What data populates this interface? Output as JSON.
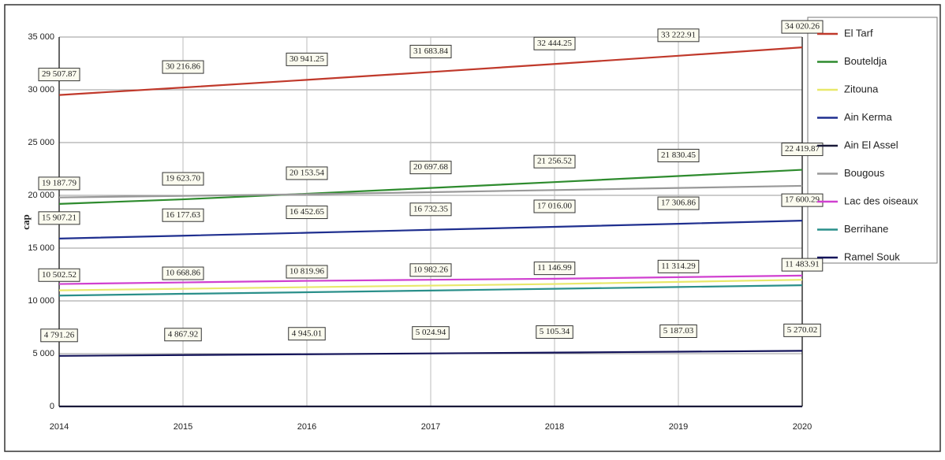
{
  "chart_data": {
    "type": "line",
    "y_label": "cap",
    "x": [
      2014,
      2015,
      2016,
      2017,
      2018,
      2019,
      2020
    ],
    "xlim": [
      2014,
      2020
    ],
    "xticks": [
      2014,
      2015,
      2016,
      2017,
      2018,
      2019,
      2020
    ],
    "ylim": [
      0,
      35000
    ],
    "yticks": [
      {
        "value": 0,
        "label": "0"
      },
      {
        "value": 5000,
        "label": "5 000"
      },
      {
        "value": 10000,
        "label": "10 000"
      },
      {
        "value": 15000,
        "label": "15 000"
      },
      {
        "value": 20000,
        "label": "20 000"
      },
      {
        "value": 25000,
        "label": "25 000"
      },
      {
        "value": 30000,
        "label": "30 000"
      },
      {
        "value": 35000,
        "label": "35 000"
      }
    ],
    "grid": true,
    "legend": "right",
    "series": [
      {
        "name": "El Tarf",
        "color": "#c0392b",
        "values": [
          29507.87,
          30216.86,
          30941.25,
          31683.84,
          32444.25,
          33222.91,
          34020.26
        ],
        "value_labels": [
          "29 507.87",
          "30 216.86",
          "30 941.25",
          "31 683.84",
          "32 444.25",
          "33 222.91",
          "34 020.26"
        ]
      },
      {
        "name": "Bouteldja",
        "color": "#2e8b2e",
        "values": [
          19187.79,
          19623.7,
          20153.54,
          20697.68,
          21256.52,
          21830.45,
          22419.87
        ],
        "value_labels": [
          "19 187.79",
          "19 623.70",
          "20 153.54",
          "20 697.68",
          "21 256.52",
          "21 830.45",
          "22 419.87"
        ]
      },
      {
        "name": "Zitouna",
        "color": "#e8e86a",
        "values": [
          11000,
          11150,
          11300,
          11450,
          11600,
          11800,
          12000
        ]
      },
      {
        "name": "Ain Kerma",
        "color": "#1f2f8f",
        "values": [
          15907.21,
          16177.63,
          16452.65,
          16732.35,
          17016.0,
          17306.86,
          17600.29
        ],
        "value_labels": [
          "15 907.21",
          "16 177.63",
          "16 452.65",
          "16 732.35",
          "17 016.00",
          "17 306.86",
          "17 600.29"
        ]
      },
      {
        "name": "Ain El Assel",
        "color": "#1a1a3a",
        "values": [
          0,
          0,
          0,
          0,
          0,
          0,
          0
        ]
      },
      {
        "name": "Bougous",
        "color": "#999999",
        "values": [
          19800,
          19950,
          20100,
          20300,
          20500,
          20700,
          20900
        ]
      },
      {
        "name": "Lac des oiseaux",
        "color": "#d040d0",
        "values": [
          11600,
          11750,
          11900,
          12000,
          12100,
          12250,
          12400
        ]
      },
      {
        "name": "Berrihane",
        "color": "#2a8f8a",
        "values": [
          10502.52,
          10668.86,
          10819.96,
          10982.26,
          11146.99,
          11314.29,
          11483.91
        ],
        "value_labels": [
          "10 502.52",
          "10 668.86",
          "10 819.96",
          "10 982.26",
          "11 146.99",
          "11 314.29",
          "11 483.91"
        ]
      },
      {
        "name": "Ramel Souk",
        "color": "#14145a",
        "values": [
          4791.26,
          4867.92,
          4945.01,
          5024.94,
          5105.34,
          5187.03,
          5270.02
        ],
        "value_labels": [
          "4 791.26",
          "4 867.92",
          "4 945.01",
          "5 024.94",
          "5 105.34",
          "5 187.03",
          "5 270.02"
        ]
      }
    ]
  }
}
